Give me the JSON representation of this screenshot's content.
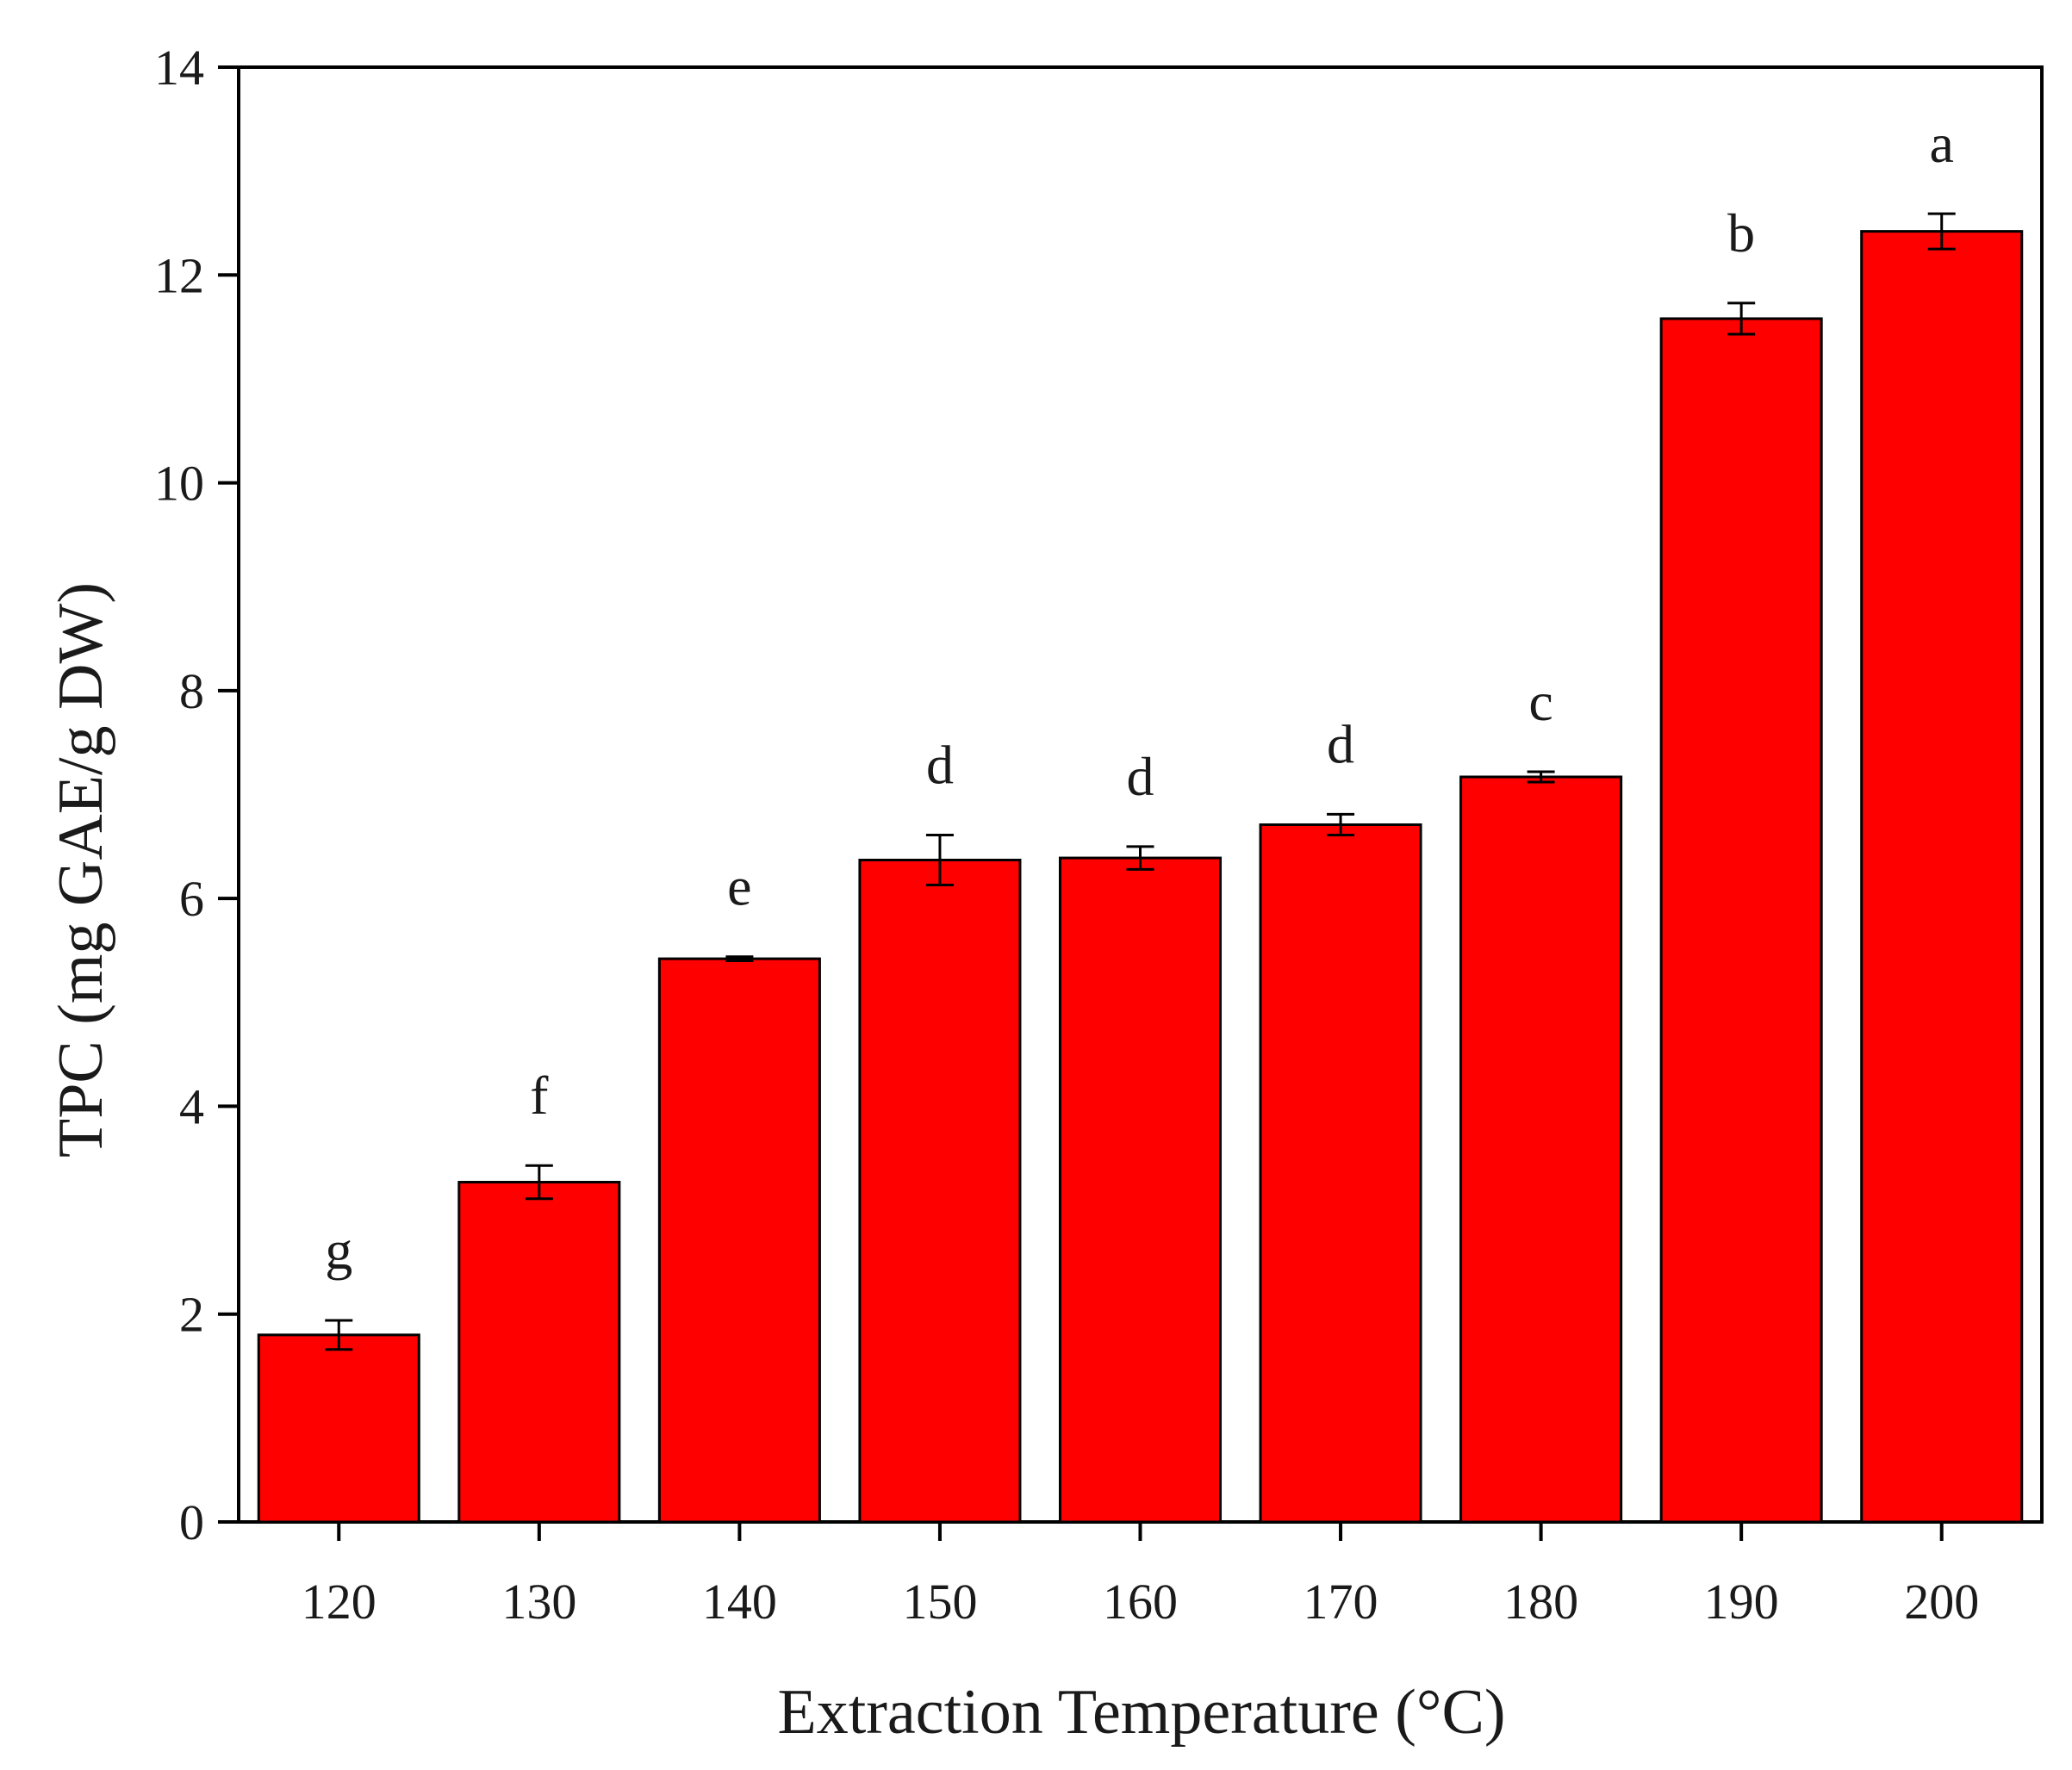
{
  "chart_data": {
    "type": "bar",
    "title": "",
    "xlabel": "Extraction Temperature (°C)",
    "ylabel": "TPC (mg GAE/g DW)",
    "ylim": [
      0,
      14
    ],
    "yticks": [
      0,
      2,
      4,
      6,
      8,
      10,
      12,
      14
    ],
    "categories": [
      "120",
      "130",
      "140",
      "150",
      "160",
      "170",
      "180",
      "190",
      "200"
    ],
    "values": [
      1.8,
      3.27,
      5.42,
      6.37,
      6.39,
      6.71,
      7.17,
      11.58,
      12.42
    ],
    "errors": [
      0.14,
      0.16,
      0.02,
      0.24,
      0.11,
      0.1,
      0.05,
      0.15,
      0.17
    ],
    "significance_letters": [
      "g",
      "f",
      "e",
      "d",
      "d",
      "d",
      "c",
      "b",
      "a"
    ],
    "colors": {
      "bar_fill": "#ff0000",
      "bar_edge": "#000000",
      "axis": "#000000"
    },
    "grid": false,
    "legend": "none"
  }
}
